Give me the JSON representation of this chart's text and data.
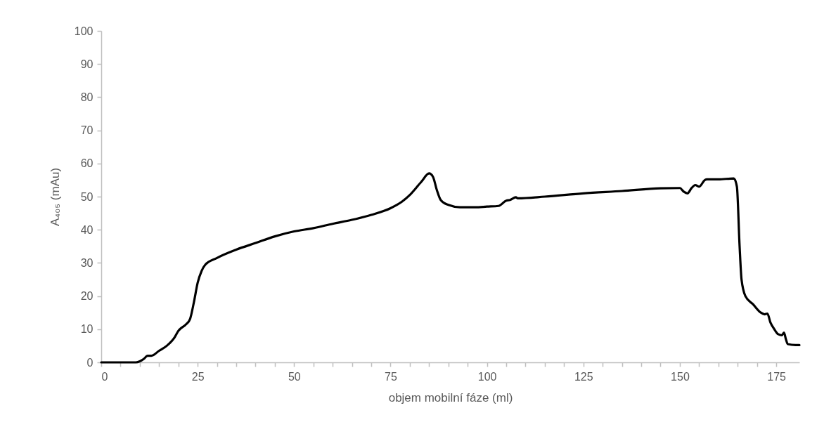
{
  "chart_data": {
    "type": "line",
    "xlabel": "objem mobilní fáze (ml)",
    "ylabel": "A₄₀₅ (mAu)",
    "x": [
      0,
      9,
      10,
      11,
      12,
      13,
      15,
      17,
      19,
      20,
      22,
      23,
      24,
      25,
      26,
      27,
      30,
      35,
      40,
      45,
      50,
      55,
      60,
      65,
      70,
      75,
      78,
      80,
      83,
      85,
      86,
      87,
      88,
      90,
      93,
      97,
      100,
      103,
      105,
      106,
      107.5,
      108,
      115,
      125,
      135,
      145,
      150,
      151,
      152,
      153,
      154,
      155,
      156.5,
      157,
      160,
      164,
      164.8,
      165.5,
      166,
      167,
      169,
      171,
      172,
      172.7,
      173.5,
      174.5,
      175.5,
      176.5,
      177,
      177.5,
      178,
      180,
      181
    ],
    "series": [
      {
        "color": "#000000",
        "values": [
          0,
          0,
          0.3,
          1,
          2,
          2,
          3.5,
          5,
          7.5,
          9.5,
          11.5,
          13,
          18,
          24,
          27.5,
          29.5,
          31.5,
          34,
          36,
          38,
          39.5,
          40.5,
          41.8,
          43,
          44.5,
          46.5,
          48.5,
          50.5,
          54.5,
          57,
          56,
          52,
          49,
          47.5,
          46.8,
          46.8,
          47,
          47.2,
          48.8,
          49,
          49.8,
          49.5,
          50,
          51,
          51.7,
          52.5,
          52.6,
          51.5,
          51,
          52.5,
          53.5,
          53,
          55,
          55.2,
          55.2,
          55.5,
          53,
          35,
          25,
          20,
          17.5,
          15,
          14.5,
          14.7,
          12,
          10,
          8.5,
          8.2,
          9,
          7,
          5.5,
          5.2,
          5.2
        ]
      }
    ],
    "xlim": [
      0,
      181
    ],
    "xticks": [
      0,
      {
        "value": 5,
        "label": null
      },
      {
        "value": 10,
        "label": null
      },
      {
        "value": 15,
        "label": null
      },
      {
        "value": 20,
        "label": null
      },
      25,
      {
        "value": 30,
        "label": null
      },
      {
        "value": 35,
        "label": null
      },
      {
        "value": 40,
        "label": null
      },
      {
        "value": 45,
        "label": null
      },
      50,
      {
        "value": 55,
        "label": null
      },
      {
        "value": 60,
        "label": null
      },
      {
        "value": 65,
        "label": null
      },
      {
        "value": 70,
        "label": null
      },
      75,
      {
        "value": 80,
        "label": null
      },
      {
        "value": 85,
        "label": null
      },
      {
        "value": 90,
        "label": null
      },
      {
        "value": 95,
        "label": null
      },
      100,
      {
        "value": 105,
        "label": null
      },
      {
        "value": 110,
        "label": null
      },
      {
        "value": 115,
        "label": null
      },
      {
        "value": 120,
        "label": null
      },
      125,
      {
        "value": 130,
        "label": null
      },
      {
        "value": 135,
        "label": null
      },
      {
        "value": 140,
        "label": null
      },
      {
        "value": 145,
        "label": null
      },
      150,
      {
        "value": 155,
        "label": null
      },
      {
        "value": 160,
        "label": null
      },
      {
        "value": 165,
        "label": null
      },
      {
        "value": 170,
        "label": null
      },
      175
    ],
    "ylim": [
      0,
      100
    ],
    "yticks": [
      0,
      10,
      20,
      30,
      40,
      50,
      60,
      70,
      80,
      90,
      100
    ],
    "grid": false,
    "legend": false,
    "marker": "none",
    "line_style": "solid"
  }
}
